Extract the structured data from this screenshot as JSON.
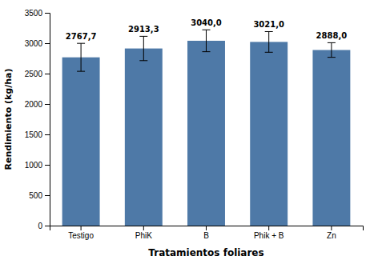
{
  "chart_data": {
    "type": "bar",
    "xlabel": "Tratamientos foliares",
    "ylabel": "Rendimiento (kg/ha)",
    "categories": [
      "Testigo",
      "PhiK",
      "B",
      "Phik + B",
      "Zn"
    ],
    "values": [
      2767.7,
      2913.3,
      3040.0,
      3021.0,
      2888.0
    ],
    "errors": [
      230,
      200,
      180,
      170,
      120
    ],
    "value_labels": [
      "2767,7",
      "2913,3",
      "3040,0",
      "3021,0",
      "2888,0"
    ],
    "data_labels": true,
    "ylim": [
      0,
      3500
    ],
    "yticks": [
      0,
      500,
      1000,
      1500,
      2000,
      2500,
      3000,
      3500
    ],
    "grid": false
  }
}
